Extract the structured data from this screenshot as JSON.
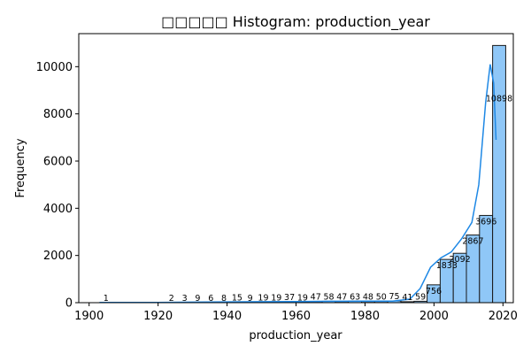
{
  "chart_data": {
    "type": "bar",
    "title": "□□□□□ Histogram: production_year",
    "xlabel": "production_year",
    "ylabel": "Frequency",
    "xlim": [
      1897,
      2023
    ],
    "ylim": [
      0,
      11400
    ],
    "xticks": [
      1900,
      1920,
      1940,
      1960,
      1980,
      2000,
      2020
    ],
    "yticks": [
      0,
      2000,
      4000,
      6000,
      8000,
      10000
    ],
    "bin_start": 1903,
    "bin_width": 3.8,
    "values": [
      1,
      0,
      0,
      0,
      0,
      2,
      3,
      9,
      6,
      8,
      15,
      9,
      19,
      19,
      37,
      19,
      47,
      58,
      47,
      63,
      48,
      50,
      75,
      41,
      59,
      756,
      1833,
      2092,
      2867,
      3696,
      10898
    ],
    "kde_curve": [
      [
        1903,
        8
      ],
      [
        1910,
        6
      ],
      [
        1920,
        12
      ],
      [
        1930,
        22
      ],
      [
        1940,
        32
      ],
      [
        1950,
        40
      ],
      [
        1960,
        50
      ],
      [
        1970,
        60
      ],
      [
        1980,
        62
      ],
      [
        1988,
        62
      ],
      [
        1993,
        150
      ],
      [
        1996,
        600
      ],
      [
        1999,
        1500
      ],
      [
        2002,
        1900
      ],
      [
        2005,
        2150
      ],
      [
        2008,
        2700
      ],
      [
        2011,
        3400
      ],
      [
        2013,
        5000
      ],
      [
        2015,
        8500
      ],
      [
        2016.3,
        10100
      ],
      [
        2017.3,
        9300
      ],
      [
        2018,
        6900
      ]
    ],
    "bar_fill": "#8fc7f7",
    "bar_stroke": "#1a1a1a",
    "line_color": "#1e88e5",
    "grid": false
  }
}
